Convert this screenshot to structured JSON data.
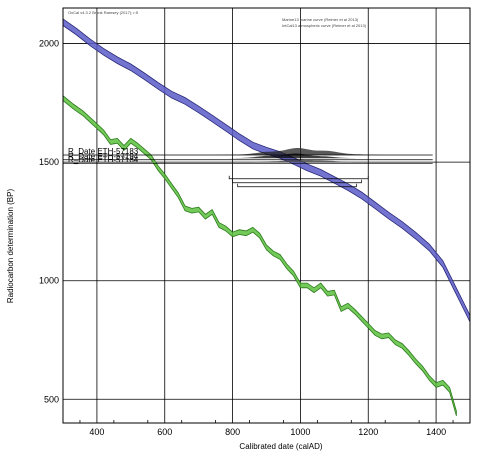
{
  "chart_data": {
    "type": "line",
    "software_note": "OxCal v4.3.2 Bronk Ramsey (2017); r:5",
    "xlabel": "Calibrated date (calAD)",
    "ylabel": "Radiocarbon determination (BP)",
    "xlim": [
      300,
      1500
    ],
    "ylim": [
      400,
      2150
    ],
    "x_ticks": [
      400,
      600,
      800,
      1000,
      1200,
      1400
    ],
    "y_ticks": [
      500,
      1000,
      1500,
      2000
    ],
    "grid": true,
    "legend": {
      "placement": "top-right",
      "entries": [
        {
          "label": "Marine13 marine curve (Reimer et al 2013)",
          "color": "#000000"
        },
        {
          "label": "IntCal13 atmospheric curve (Reimer et al 2013)",
          "color": "#3cb21e"
        }
      ]
    },
    "series": [
      {
        "name": "Marine13 marine curve (Reimer et al 2013)",
        "color": "#5a5ac8",
        "band_halfwidth": 14,
        "x": [
          300,
          340,
          380,
          420,
          460,
          500,
          540,
          580,
          620,
          660,
          700,
          740,
          780,
          820,
          860,
          900,
          940,
          980,
          1020,
          1060,
          1100,
          1140,
          1180,
          1220,
          1260,
          1300,
          1340,
          1380,
          1420,
          1460,
          1500
        ],
        "y": [
          2090,
          2050,
          2005,
          1965,
          1930,
          1900,
          1862,
          1822,
          1785,
          1758,
          1722,
          1684,
          1645,
          1605,
          1570,
          1548,
          1530,
          1505,
          1478,
          1455,
          1425,
          1395,
          1360,
          1318,
          1275,
          1235,
          1190,
          1140,
          1070,
          955,
          840
        ]
      },
      {
        "name": "IntCal13 atmospheric curve (Reimer et al 2013)",
        "color": "#5ac03c",
        "band_halfwidth": 10,
        "x": [
          300,
          330,
          360,
          390,
          420,
          440,
          460,
          480,
          500,
          520,
          540,
          560,
          580,
          600,
          620,
          640,
          660,
          680,
          700,
          720,
          740,
          760,
          780,
          800,
          820,
          840,
          860,
          880,
          900,
          920,
          940,
          960,
          980,
          1000,
          1020,
          1040,
          1060,
          1080,
          1100,
          1120,
          1140,
          1160,
          1180,
          1200,
          1220,
          1240,
          1260,
          1280,
          1300,
          1320,
          1340,
          1360,
          1380,
          1400,
          1420,
          1440,
          1460
        ],
        "y": [
          1770,
          1735,
          1705,
          1665,
          1625,
          1585,
          1590,
          1560,
          1590,
          1570,
          1545,
          1520,
          1475,
          1440,
          1400,
          1360,
          1305,
          1295,
          1300,
          1270,
          1290,
          1235,
          1220,
          1195,
          1205,
          1200,
          1215,
          1190,
          1140,
          1115,
          1100,
          1060,
          1030,
          980,
          980,
          960,
          980,
          945,
          950,
          880,
          895,
          870,
          840,
          810,
          780,
          765,
          770,
          740,
          725,
          695,
          660,
          630,
          590,
          560,
          570,
          540,
          440
        ]
      }
    ],
    "dates": [
      {
        "label": "R_Date ETH-57183",
        "line_y": 1530,
        "range_start": 790,
        "range_end": 1200
      },
      {
        "label": "R_Date ETH-57194",
        "line_y": 1510,
        "range_start": 800,
        "range_end": 1180
      },
      {
        "label": "R_Date ETH-57184",
        "line_y": 1495,
        "range_start": 815,
        "range_end": 1165
      }
    ]
  }
}
